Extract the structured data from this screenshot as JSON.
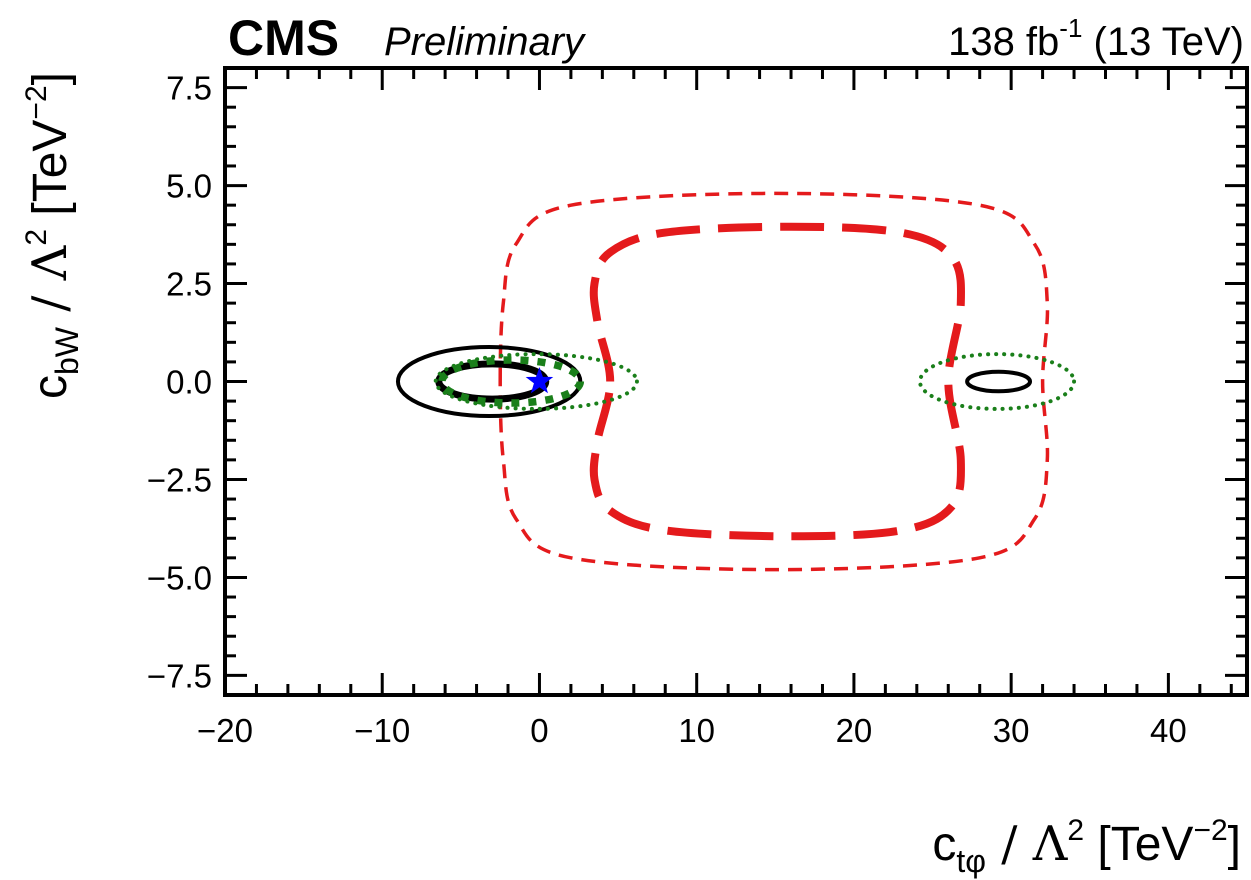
{
  "header": {
    "experiment": "CMS",
    "status": "Preliminary",
    "lumi_value": "138 fb",
    "lumi_exp": "-1",
    "energy": "(13 TeV)"
  },
  "axes": {
    "x": {
      "sym_main": "c",
      "sym_sub": "tφ",
      "rest": " / Λ",
      "sq": "2",
      "unit": " [TeV",
      "unit_exp": "−2",
      "close": "]"
    },
    "y": {
      "sym_main": "c",
      "sym_sub": "bW",
      "rest": " / Λ",
      "sq": "2",
      "unit": " [TeV",
      "unit_exp": "−2",
      "close": "]"
    }
  },
  "colors": {
    "frame": "#000000",
    "red": "#e41a1c",
    "green": "#1a7f1a",
    "black": "#000000",
    "marker": "#0000ff"
  },
  "chart_data": {
    "type": "contour",
    "xlim": [
      -20,
      45
    ],
    "ylim": [
      -8,
      8
    ],
    "xticks": [
      -20,
      -10,
      0,
      10,
      20,
      30,
      40
    ],
    "xtick_labels": [
      "−20",
      "−10",
      "0",
      "10",
      "20",
      "30",
      "40"
    ],
    "yticks": [
      -7.5,
      -5.0,
      -2.5,
      0.0,
      2.5,
      5.0,
      7.5
    ],
    "ytick_labels": [
      "−7.5",
      "−5.0",
      "−2.5",
      "0.0",
      "2.5",
      "5.0",
      "7.5"
    ],
    "best_fit": {
      "x": 0.0,
      "y": 0.0,
      "marker": "star"
    },
    "contours": [
      {
        "id": "red-outer",
        "color": "red",
        "style": "thin-dashed",
        "closed": true,
        "points": [
          [
            -2.5,
            0
          ],
          [
            -2.3,
            2.0
          ],
          [
            -1.5,
            3.5
          ],
          [
            2,
            4.5
          ],
          [
            15,
            4.8
          ],
          [
            28,
            4.5
          ],
          [
            31.5,
            3.5
          ],
          [
            32.3,
            2.0
          ],
          [
            32.0,
            0
          ],
          [
            32.3,
            -2.0
          ],
          [
            31.5,
            -3.5
          ],
          [
            28,
            -4.5
          ],
          [
            15,
            -4.8
          ],
          [
            2,
            -4.5
          ],
          [
            -1.5,
            -3.5
          ],
          [
            -2.3,
            -2.0
          ]
        ]
      },
      {
        "id": "red-inner",
        "color": "red",
        "style": "thick-dashed",
        "closed": true,
        "points": [
          [
            4.5,
            0
          ],
          [
            3.7,
            1.5
          ],
          [
            3.5,
            2.5
          ],
          [
            4.5,
            3.3
          ],
          [
            8,
            3.8
          ],
          [
            16,
            3.95
          ],
          [
            23,
            3.8
          ],
          [
            26.2,
            3.2
          ],
          [
            26.8,
            2.0
          ],
          [
            26.0,
            0
          ],
          [
            26.8,
            -2.0
          ],
          [
            26.2,
            -3.2
          ],
          [
            23,
            -3.8
          ],
          [
            16,
            -3.95
          ],
          [
            8,
            -3.8
          ],
          [
            4.5,
            -3.3
          ],
          [
            3.5,
            -2.5
          ],
          [
            3.7,
            -1.5
          ]
        ]
      },
      {
        "id": "black-outer",
        "color": "black",
        "style": "solid",
        "ellipse": {
          "cx": -3.2,
          "cy": 0.0,
          "rx": 5.8,
          "ry": 0.88
        }
      },
      {
        "id": "black-inner",
        "color": "black",
        "style": "solid-thick",
        "ellipse": {
          "cx": -3.0,
          "cy": 0.0,
          "rx": 3.4,
          "ry": 0.45
        }
      },
      {
        "id": "black-right",
        "color": "black",
        "style": "solid",
        "ellipse": {
          "cx": 29.2,
          "cy": 0.0,
          "rx": 2.0,
          "ry": 0.25
        }
      },
      {
        "id": "green-outer",
        "color": "green",
        "style": "dotted",
        "ellipse": {
          "cx": -0.2,
          "cy": 0.0,
          "rx": 6.4,
          "ry": 0.7
        }
      },
      {
        "id": "green-inner",
        "color": "green",
        "style": "dotted-thick",
        "ellipse": {
          "cx": -1.8,
          "cy": 0.0,
          "rx": 4.4,
          "ry": 0.55
        }
      },
      {
        "id": "green-right",
        "color": "green",
        "style": "dotted",
        "ellipse": {
          "cx": 29.1,
          "cy": 0.0,
          "rx": 4.9,
          "ry": 0.7
        }
      }
    ]
  }
}
